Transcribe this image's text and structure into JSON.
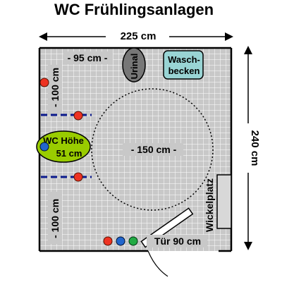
{
  "title": "WC Frühlingsanlagen",
  "dimensions": {
    "width": "225 cm",
    "height": "240 cm",
    "left_span": "- 95 cm -",
    "upper_vertical": "- 100 cm",
    "lower_vertical": "- 100 cm",
    "turning_circle": "- 150 cm -",
    "door": "Tür 90 cm"
  },
  "fixtures": {
    "urinal": "Urinal",
    "sink_line1": "Wasch-",
    "sink_line2": "becken",
    "wc_line1": "WC Höhe",
    "wc_line2": "51 cm",
    "changing_table": "Wickelplatz"
  },
  "colors": {
    "floor": "#c8c8c8",
    "grid": "#ffffff",
    "wall": "#000000",
    "wc_fill": "#99cc00",
    "urinal_fill": "#777777",
    "sink_fill": "#99d4d4",
    "changing_table_fill": "#d8d8d8",
    "dot_red": "#ee3322",
    "dot_blue": "#2266cc",
    "dot_green": "#22aa44",
    "handrail": "#0b1a8c"
  },
  "icons": [
    "grab-bar-icon",
    "button-dot-icon",
    "door-swing-icon",
    "dimension-arrow-icon"
  ]
}
